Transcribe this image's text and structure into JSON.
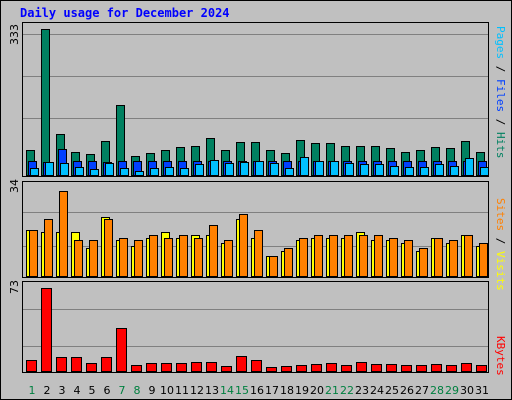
{
  "title": "Daily usage for December 2024",
  "day_color_weekday": "#000000",
  "day_color_weekend": "#008040",
  "chart_data": [
    {
      "type": "bar",
      "panel": "hits",
      "ymax_label": "333",
      "ylim": [
        0,
        333
      ],
      "label_parts": [
        {
          "text": "Pages",
          "color": "#00c0ff"
        },
        {
          "text": " / ",
          "color": "#000000"
        },
        {
          "text": "Files",
          "color": "#0040ff"
        },
        {
          "text": " / ",
          "color": "#000000"
        },
        {
          "text": "Hits",
          "color": "#008060"
        }
      ],
      "categories": [
        "1",
        "2",
        "3",
        "4",
        "5",
        "6",
        "7",
        "8",
        "9",
        "10",
        "11",
        "12",
        "13",
        "14",
        "15",
        "16",
        "17",
        "18",
        "19",
        "20",
        "21",
        "22",
        "23",
        "24",
        "25",
        "26",
        "27",
        "28",
        "29",
        "30",
        "31"
      ],
      "weekend_days": [
        "1",
        "7",
        "8",
        "14",
        "15",
        "21",
        "22",
        "28",
        "29"
      ],
      "series": [
        {
          "name": "Hits",
          "color": "#008060",
          "values": [
            60,
            333,
            95,
            55,
            50,
            80,
            160,
            45,
            52,
            60,
            65,
            67,
            85,
            60,
            77,
            78,
            60,
            52,
            82,
            75,
            75,
            67,
            67,
            67,
            63,
            55,
            58,
            65,
            63,
            80,
            55
          ]
        },
        {
          "name": "Files",
          "color": "#0040ff",
          "values": [
            35,
            32,
            62,
            35,
            35,
            32,
            35,
            35,
            35,
            35,
            35,
            35,
            35,
            35,
            35,
            35,
            35,
            35,
            35,
            35,
            35,
            35,
            35,
            35,
            35,
            35,
            35,
            35,
            35,
            35,
            35
          ]
        },
        {
          "name": "Pages",
          "color": "#00c0ff",
          "values": [
            18,
            32,
            30,
            20,
            15,
            30,
            18,
            12,
            17,
            20,
            18,
            27,
            37,
            30,
            32,
            35,
            30,
            17,
            42,
            35,
            33,
            30,
            27,
            27,
            23,
            20,
            20,
            28,
            22,
            40,
            20
          ]
        }
      ]
    },
    {
      "type": "bar",
      "panel": "visits",
      "ymax_label": "34",
      "ylim": [
        0,
        34
      ],
      "label_parts": [
        {
          "text": "Sites",
          "color": "#ff8000"
        },
        {
          "text": " / ",
          "color": "#000000"
        },
        {
          "text": "Visits",
          "color": "#ffff00"
        }
      ],
      "categories": [
        "1",
        "2",
        "3",
        "4",
        "5",
        "6",
        "7",
        "8",
        "9",
        "10",
        "11",
        "12",
        "13",
        "14",
        "15",
        "16",
        "17",
        "18",
        "19",
        "20",
        "21",
        "22",
        "23",
        "24",
        "25",
        "26",
        "27",
        "28",
        "29",
        "30",
        "31"
      ],
      "series": [
        {
          "name": "Visits",
          "color": "#ffff00",
          "values": [
            18,
            17,
            17,
            17,
            11,
            23,
            14,
            12,
            15,
            17,
            15,
            16,
            16,
            13,
            22,
            15,
            8,
            10,
            14,
            15,
            15,
            15,
            17,
            14,
            14,
            13,
            10,
            15,
            13,
            16,
            12
          ]
        },
        {
          "name": "Sites",
          "color": "#ff8000",
          "values": [
            18,
            22,
            33,
            14,
            14,
            22,
            15,
            14,
            16,
            15,
            16,
            15,
            20,
            14,
            24,
            18,
            8,
            11,
            15,
            16,
            16,
            16,
            16,
            16,
            15,
            14,
            11,
            15,
            14,
            16,
            13
          ]
        }
      ]
    },
    {
      "type": "bar",
      "panel": "kbytes",
      "ymax_label": "73",
      "ylim": [
        0,
        73
      ],
      "label_parts": [
        {
          "text": "KBytes",
          "color": "#ff0000"
        }
      ],
      "categories": [
        "1",
        "2",
        "3",
        "4",
        "5",
        "6",
        "7",
        "8",
        "9",
        "10",
        "11",
        "12",
        "13",
        "14",
        "15",
        "16",
        "17",
        "18",
        "19",
        "20",
        "21",
        "22",
        "23",
        "24",
        "25",
        "26",
        "27",
        "28",
        "29",
        "30",
        "31"
      ],
      "series": [
        {
          "name": "KBytes",
          "color": "#ff0000",
          "values": [
            10,
            73,
            13,
            13,
            8,
            13,
            38,
            6,
            8,
            8,
            8,
            9,
            9,
            5,
            14,
            10,
            4,
            5,
            6,
            7,
            8,
            6,
            9,
            7,
            7,
            6,
            6,
            7,
            6,
            8,
            6
          ]
        }
      ]
    }
  ]
}
